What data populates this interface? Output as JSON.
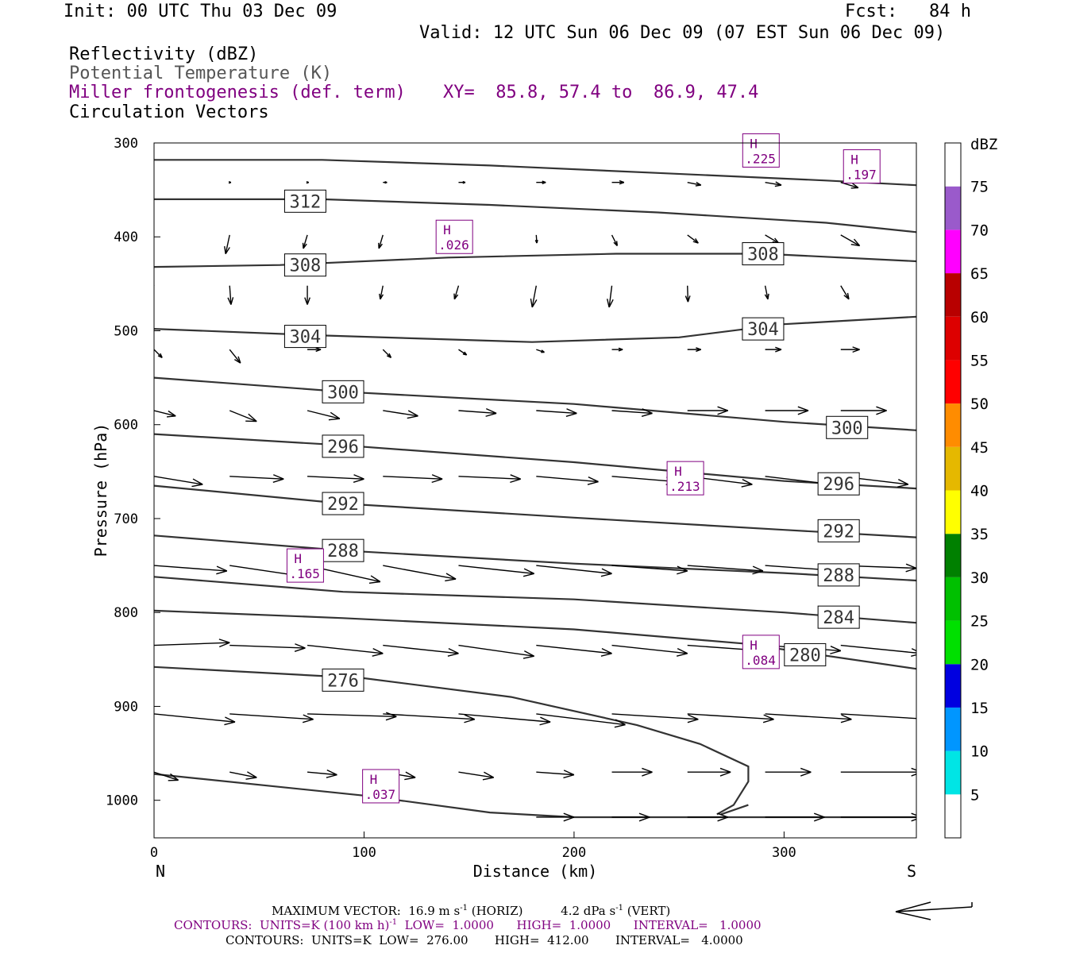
{
  "header": {
    "init": "Init: 00 UTC Thu 03 Dec 09",
    "fcst": "Fcst:   84 h",
    "valid": "Valid: 12 UTC Sun 06 Dec 09 (07 EST Sun 06 Dec 09)",
    "fields": {
      "reflectivity": "Reflectivity (dBZ)",
      "theta": "Potential Temperature (K)",
      "miller": "Miller frontogenesis (def. term)",
      "xy": "XY=  85.8, 57.4 to  86.9, 47.4",
      "vectors": "Circulation Vectors"
    }
  },
  "colors": {
    "purple": "#800080",
    "gray": "#555555",
    "contour": "#333333",
    "vector": "#000000"
  },
  "footer": {
    "max_vector_prefix": "MAXIMUM VECTOR:  16.9 m s",
    "max_vector_exp": "-1",
    "max_vector_mid": " (HORIZ)          4.2 dPa s",
    "max_vector_exp2": "-1",
    "max_vector_suffix": " (VERT)",
    "contours1_prefix": "CONTOURS:  UNITS=K (100 km h)",
    "contours1_exp": "-1",
    "contours1_suffix": "  LOW=  1.0000      HIGH=  1.0000      INTERVAL=   1.0000",
    "contours2": "CONTOURS:  UNITS=K  LOW=  276.00       HIGH=  412.00       INTERVAL=   4.0000",
    "ref_arrow": "reference-vector-arrow"
  },
  "chart_data": {
    "type": "cross-section",
    "xlabel": "Distance (km)",
    "ylabel": "Pressure (hPa)",
    "xlim": [
      0,
      363
    ],
    "ylim": [
      1040,
      300
    ],
    "yscale": "linear-inverted",
    "x_ticks": [
      "0",
      "100",
      "200",
      "300"
    ],
    "x_tick_values": [
      0,
      100,
      200,
      300
    ],
    "y_ticks": [
      "300",
      "400",
      "500",
      "600",
      "700",
      "800",
      "900",
      "1000"
    ],
    "y_tick_values": [
      300,
      400,
      500,
      600,
      700,
      800,
      900,
      1000
    ],
    "endpoints": {
      "left": "N",
      "right": "S"
    },
    "colorbar": {
      "title": "dBZ",
      "labels": [
        "5",
        "10",
        "15",
        "20",
        "25",
        "30",
        "35",
        "40",
        "45",
        "50",
        "55",
        "60",
        "65",
        "70",
        "75"
      ],
      "bins": [
        {
          "from": 0,
          "to": 5,
          "color": "#ffffff"
        },
        {
          "from": 5,
          "to": 10,
          "color": "#00e5e5"
        },
        {
          "from": 10,
          "to": 15,
          "color": "#0096ff"
        },
        {
          "from": 15,
          "to": 20,
          "color": "#0000e0"
        },
        {
          "from": 20,
          "to": 25,
          "color": "#00e000"
        },
        {
          "from": 25,
          "to": 30,
          "color": "#00c000"
        },
        {
          "from": 30,
          "to": 35,
          "color": "#008000"
        },
        {
          "from": 35,
          "to": 40,
          "color": "#ffff00"
        },
        {
          "from": 40,
          "to": 45,
          "color": "#e5b800"
        },
        {
          "from": 45,
          "to": 50,
          "color": "#ff8c00"
        },
        {
          "from": 50,
          "to": 55,
          "color": "#ff0000"
        },
        {
          "from": 55,
          "to": 60,
          "color": "#dd0000"
        },
        {
          "from": 60,
          "to": 65,
          "color": "#b80000"
        },
        {
          "from": 65,
          "to": 70,
          "color": "#ff00ff"
        },
        {
          "from": 70,
          "to": 75,
          "color": "#9a5acb"
        },
        {
          "from": 75,
          "to": 80,
          "color": "#ffffff"
        }
      ]
    },
    "isentropes": [
      {
        "label": "312",
        "points": [
          [
            0,
            318
          ],
          [
            80,
            318
          ],
          [
            160,
            324
          ],
          [
            240,
            332
          ],
          [
            320,
            340
          ],
          [
            363,
            345
          ]
        ],
        "labels_at": [
          [
            72,
            362
          ]
        ]
      },
      {
        "label": "312b",
        "points": [
          [
            0,
            360
          ],
          [
            80,
            360
          ],
          [
            160,
            366
          ],
          [
            240,
            374
          ],
          [
            320,
            385
          ],
          [
            363,
            395
          ]
        ],
        "labels_at": []
      },
      {
        "label": "308",
        "points": [
          [
            0,
            432
          ],
          [
            60,
            430
          ],
          [
            140,
            422
          ],
          [
            220,
            418
          ],
          [
            290,
            418
          ],
          [
            363,
            426
          ]
        ],
        "labels_at": [
          [
            72,
            430
          ],
          [
            290,
            418
          ]
        ]
      },
      {
        "label": "304",
        "points": [
          [
            0,
            498
          ],
          [
            80,
            505
          ],
          [
            180,
            512
          ],
          [
            250,
            507
          ],
          [
            300,
            493
          ],
          [
            363,
            485
          ]
        ],
        "labels_at": [
          [
            72,
            506
          ],
          [
            290,
            498
          ]
        ]
      },
      {
        "label": "300",
        "points": [
          [
            0,
            550
          ],
          [
            90,
            565
          ],
          [
            200,
            578
          ],
          [
            300,
            597
          ],
          [
            363,
            606
          ]
        ],
        "labels_at": [
          [
            90,
            565
          ],
          [
            330,
            603
          ]
        ]
      },
      {
        "label": "296",
        "points": [
          [
            0,
            610
          ],
          [
            90,
            622
          ],
          [
            200,
            640
          ],
          [
            300,
            660
          ],
          [
            363,
            668
          ]
        ],
        "labels_at": [
          [
            90,
            623
          ],
          [
            326,
            663
          ]
        ]
      },
      {
        "label": "292",
        "points": [
          [
            0,
            665
          ],
          [
            90,
            684
          ],
          [
            200,
            699
          ],
          [
            300,
            712
          ],
          [
            363,
            720
          ]
        ],
        "labels_at": [
          [
            90,
            684
          ],
          [
            326,
            713
          ]
        ]
      },
      {
        "label": "288",
        "points": [
          [
            0,
            718
          ],
          [
            90,
            734
          ],
          [
            200,
            748
          ],
          [
            300,
            758
          ],
          [
            363,
            766
          ]
        ],
        "labels_at": [
          [
            90,
            734
          ],
          [
            326,
            760
          ]
        ]
      },
      {
        "label": "284",
        "points": [
          [
            0,
            762
          ],
          [
            90,
            778
          ],
          [
            200,
            786
          ],
          [
            300,
            800
          ],
          [
            363,
            811
          ]
        ],
        "labels_at": [
          [
            326,
            805
          ]
        ]
      },
      {
        "label": "280",
        "points": [
          [
            0,
            798
          ],
          [
            90,
            806
          ],
          [
            200,
            818
          ],
          [
            280,
            833
          ],
          [
            363,
            860
          ]
        ],
        "labels_at": [
          [
            310,
            845
          ]
        ]
      },
      {
        "label": "276",
        "points": [
          [
            0,
            858
          ],
          [
            100,
            870
          ],
          [
            170,
            890
          ],
          [
            230,
            920
          ],
          [
            260,
            940
          ],
          [
            283,
            964
          ],
          [
            283,
            980
          ],
          [
            276,
            1005
          ],
          [
            268,
            1015
          ]
        ],
        "labels_at": [
          [
            90,
            872
          ]
        ]
      },
      {
        "label": "base",
        "points": [
          [
            0,
            972
          ],
          [
            100,
            995
          ],
          [
            160,
            1013
          ],
          [
            200,
            1018
          ],
          [
            363,
            1018
          ]
        ],
        "labels_at": []
      },
      {
        "label": "cusp",
        "points": [
          [
            270,
            1015
          ],
          [
            283,
            1005
          ]
        ],
        "labels_at": []
      }
    ],
    "frontogenesis_maxima": [
      {
        "label": "H",
        "value": ".225",
        "x": 289,
        "y": 308
      },
      {
        "label": "H",
        "value": ".197",
        "x": 337,
        "y": 325
      },
      {
        "label": "H",
        "value": ".026",
        "x": 143,
        "y": 400
      },
      {
        "label": "H",
        "value": ".213",
        "x": 253,
        "y": 657
      },
      {
        "label": "H",
        "value": ".165",
        "x": 72,
        "y": 750
      },
      {
        "label": "H",
        "value": ".084",
        "x": 289,
        "y": 842
      },
      {
        "label": "H",
        "value": ".037",
        "x": 108,
        "y": 985
      }
    ],
    "circulation_vectors": {
      "units": "(horiz km, vert hPa)",
      "levels": [
        {
          "p": 342,
          "vectors": [
            [
              36,
              0.5,
              0
            ],
            [
              73,
              0.5,
              0
            ],
            [
              109,
              1.5,
              0
            ],
            [
              145,
              2.5,
              0
            ],
            [
              182,
              3.5,
              0
            ],
            [
              218,
              4.5,
              0
            ],
            [
              254,
              5,
              1
            ],
            [
              291,
              6,
              1
            ],
            [
              327,
              6.5,
              2
            ]
          ]
        },
        {
          "p": 398,
          "vectors": [
            [
              36,
              -1.5,
              7
            ],
            [
              73,
              -1.5,
              5
            ],
            [
              109,
              -1.5,
              5
            ],
            [
              145,
              -1,
              5
            ],
            [
              182,
              0.2,
              3
            ],
            [
              218,
              2,
              4
            ],
            [
              254,
              4,
              3
            ],
            [
              291,
              5,
              3
            ],
            [
              327,
              7,
              4
            ]
          ]
        },
        {
          "p": 452,
          "vectors": [
            [
              0,
              -1.5,
              -5
            ],
            [
              36,
              0.5,
              7
            ],
            [
              73,
              0,
              7
            ],
            [
              109,
              -1,
              5
            ],
            [
              145,
              -1.5,
              5
            ],
            [
              182,
              -1.5,
              8
            ],
            [
              218,
              -1,
              8
            ],
            [
              254,
              0.2,
              6
            ],
            [
              291,
              1,
              5
            ],
            [
              327,
              3,
              5
            ]
          ]
        },
        {
          "p": 520,
          "vectors": [
            [
              0,
              3,
              3
            ],
            [
              36,
              4,
              5
            ],
            [
              73,
              5,
              0
            ],
            [
              109,
              3,
              3
            ],
            [
              145,
              3,
              2
            ],
            [
              182,
              3,
              1
            ],
            [
              218,
              4,
              0
            ],
            [
              254,
              5,
              0
            ],
            [
              291,
              6,
              0
            ],
            [
              327,
              7,
              0
            ]
          ]
        },
        {
          "p": 585,
          "vectors": [
            [
              0,
              8,
              2
            ],
            [
              36,
              10,
              4
            ],
            [
              73,
              12,
              3
            ],
            [
              109,
              13,
              2
            ],
            [
              145,
              14,
              1
            ],
            [
              182,
              15,
              1
            ],
            [
              218,
              15,
              1
            ],
            [
              254,
              15,
              0
            ],
            [
              291,
              16,
              0
            ],
            [
              327,
              17,
              0
            ]
          ]
        },
        {
          "p": 655,
          "vectors": [
            [
              0,
              18,
              3
            ],
            [
              36,
              20,
              1
            ],
            [
              73,
              21,
              1
            ],
            [
              109,
              22,
              1
            ],
            [
              145,
              23,
              1
            ],
            [
              182,
              23,
              2
            ],
            [
              218,
              24,
              2
            ],
            [
              254,
              24,
              3
            ],
            [
              291,
              25,
              3
            ],
            [
              327,
              25,
              3
            ]
          ]
        },
        {
          "p": 750,
          "vectors": [
            [
              0,
              27,
              2
            ],
            [
              36,
              27,
              4
            ],
            [
              73,
              27,
              6
            ],
            [
              109,
              27,
              5
            ],
            [
              145,
              28,
              3
            ],
            [
              182,
              28,
              3
            ],
            [
              218,
              28,
              2
            ],
            [
              254,
              28,
              2
            ],
            [
              291,
              28,
              2
            ],
            [
              327,
              28,
              1
            ]
          ]
        },
        {
          "p": 835,
          "vectors": [
            [
              0,
              28,
              -1
            ],
            [
              36,
              28,
              1
            ],
            [
              73,
              28,
              3
            ],
            [
              109,
              28,
              3
            ],
            [
              145,
              28,
              4
            ],
            [
              182,
              28,
              3
            ],
            [
              218,
              28,
              3
            ],
            [
              254,
              28,
              2
            ],
            [
              291,
              28,
              2
            ],
            [
              327,
              30,
              3
            ]
          ]
        },
        {
          "p": 908,
          "vectors": [
            [
              0,
              30,
              3
            ],
            [
              36,
              31,
              2
            ],
            [
              73,
              33,
              1
            ],
            [
              109,
              34,
              2
            ],
            [
              145,
              34,
              3
            ],
            [
              182,
              33,
              4
            ],
            [
              218,
              32,
              2
            ],
            [
              254,
              32,
              2
            ],
            [
              291,
              32,
              2
            ],
            [
              327,
              33,
              2
            ]
          ]
        },
        {
          "p": 970,
          "vectors": [
            [
              0,
              9,
              3
            ],
            [
              36,
              10,
              2
            ],
            [
              73,
              11,
              1
            ],
            [
              109,
              12,
              2
            ],
            [
              145,
              13,
              2
            ],
            [
              182,
              14,
              1
            ],
            [
              218,
              15,
              0
            ],
            [
              254,
              16,
              0
            ],
            [
              291,
              17,
              0
            ],
            [
              327,
              30,
              0
            ]
          ]
        },
        {
          "p": 1018,
          "vectors": [
            [
              182,
              14,
              0
            ],
            [
              218,
              14,
              0
            ],
            [
              254,
              15,
              0
            ],
            [
              291,
              22,
              0
            ],
            [
              327,
              30,
              0
            ]
          ]
        }
      ]
    }
  }
}
